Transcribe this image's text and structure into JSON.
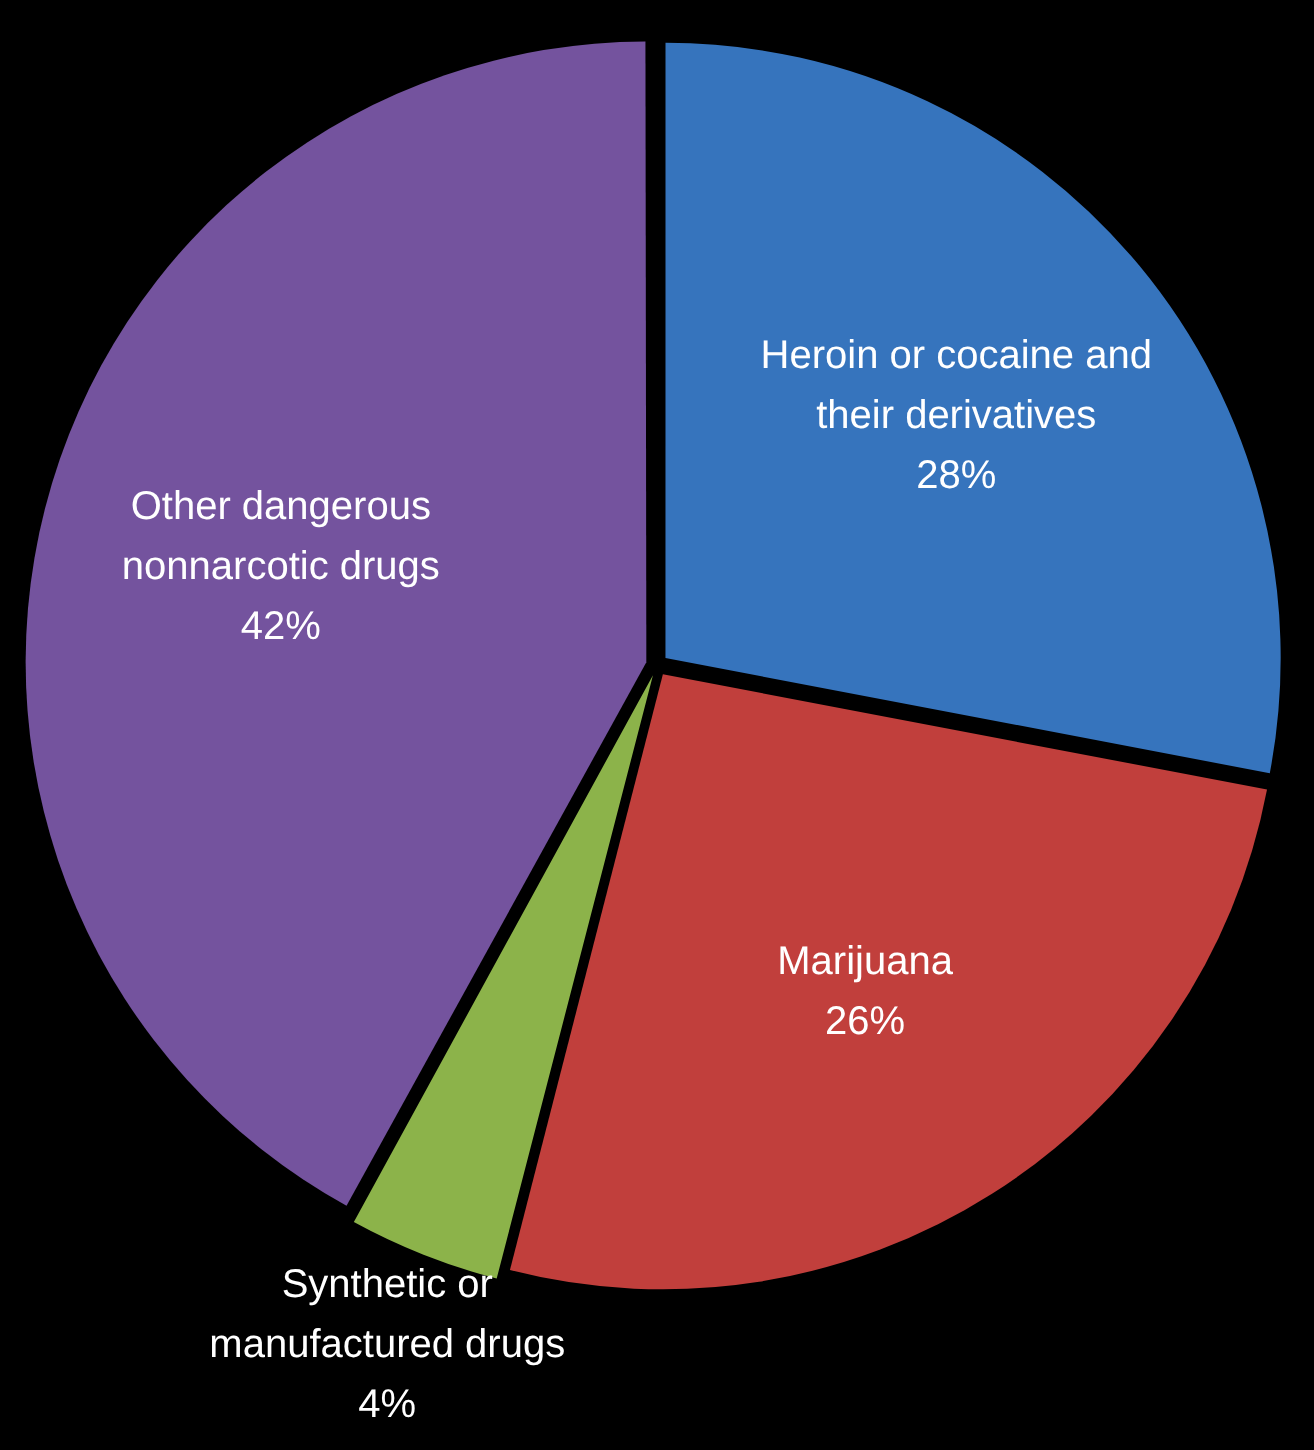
{
  "chart_data": {
    "type": "pie",
    "categories": [
      "Heroin or cocaine and their derivatives",
      "Marijuana",
      "Synthetic or manufactured drugs",
      "Other dangerous nonnarcotic drugs"
    ],
    "values": [
      28,
      26,
      4,
      42
    ],
    "value_labels": [
      "28%",
      "26%",
      "4%",
      "42%"
    ],
    "colors": [
      "#3674bd",
      "#c13f3c",
      "#8cb34a",
      "#74539e"
    ]
  }
}
